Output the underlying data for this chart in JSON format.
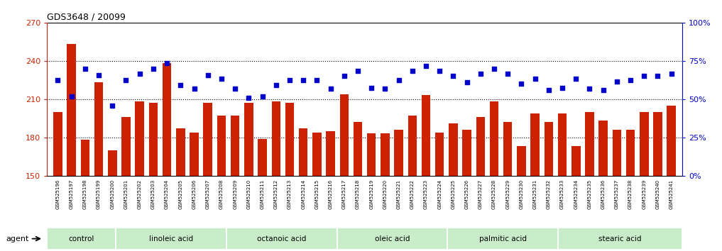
{
  "title": "GDS3648 / 20099",
  "samples": [
    "GSM525196",
    "GSM525197",
    "GSM525198",
    "GSM525199",
    "GSM525200",
    "GSM525201",
    "GSM525202",
    "GSM525203",
    "GSM525204",
    "GSM525205",
    "GSM525206",
    "GSM525207",
    "GSM525208",
    "GSM525209",
    "GSM525210",
    "GSM525211",
    "GSM525212",
    "GSM525213",
    "GSM525214",
    "GSM525215",
    "GSM525216",
    "GSM525217",
    "GSM525218",
    "GSM525219",
    "GSM525220",
    "GSM525221",
    "GSM525222",
    "GSM525223",
    "GSM525224",
    "GSM525225",
    "GSM525226",
    "GSM525227",
    "GSM525228",
    "GSM525229",
    "GSM525230",
    "GSM525231",
    "GSM525232",
    "GSM525233",
    "GSM525234",
    "GSM525235",
    "GSM525236",
    "GSM525237",
    "GSM525238",
    "GSM525239",
    "GSM525240",
    "GSM525241"
  ],
  "bar_values": [
    200,
    253,
    178,
    223,
    170,
    196,
    208,
    207,
    238,
    187,
    184,
    207,
    197,
    197,
    207,
    179,
    208,
    207,
    187,
    184,
    185,
    214,
    192,
    183,
    183,
    186,
    197,
    213,
    184,
    191,
    186,
    196,
    208,
    192,
    173,
    199,
    192,
    199,
    173,
    200,
    193,
    186,
    186,
    200,
    200,
    205
  ],
  "dot_values": [
    225,
    212,
    234,
    229,
    205,
    225,
    230,
    234,
    238,
    221,
    218,
    229,
    226,
    218,
    211,
    212,
    221,
    225,
    225,
    225,
    218,
    228,
    232,
    219,
    218,
    225,
    232,
    236,
    232,
    228,
    223,
    230,
    234,
    230,
    222,
    226,
    217,
    219,
    226,
    218,
    217,
    224,
    225,
    228,
    228,
    230
  ],
  "groups": [
    {
      "label": "control",
      "start": 0,
      "end": 4
    },
    {
      "label": "linoleic acid",
      "start": 5,
      "end": 12
    },
    {
      "label": "octanoic acid",
      "start": 13,
      "end": 20
    },
    {
      "label": "oleic acid",
      "start": 21,
      "end": 28
    },
    {
      "label": "palmitic acid",
      "start": 29,
      "end": 36
    },
    {
      "label": "stearic acid",
      "start": 37,
      "end": 45
    }
  ],
  "group_color": "#c8edc8",
  "group_border_color": "white",
  "ylim_left": [
    150,
    270
  ],
  "ylim_right": [
    0,
    100
  ],
  "yticks_left": [
    150,
    180,
    210,
    240,
    270
  ],
  "yticks_right": [
    0,
    25,
    50,
    75,
    100
  ],
  "bar_color": "#cc2200",
  "dot_color": "#0000cc",
  "background_color": "#ffffff"
}
